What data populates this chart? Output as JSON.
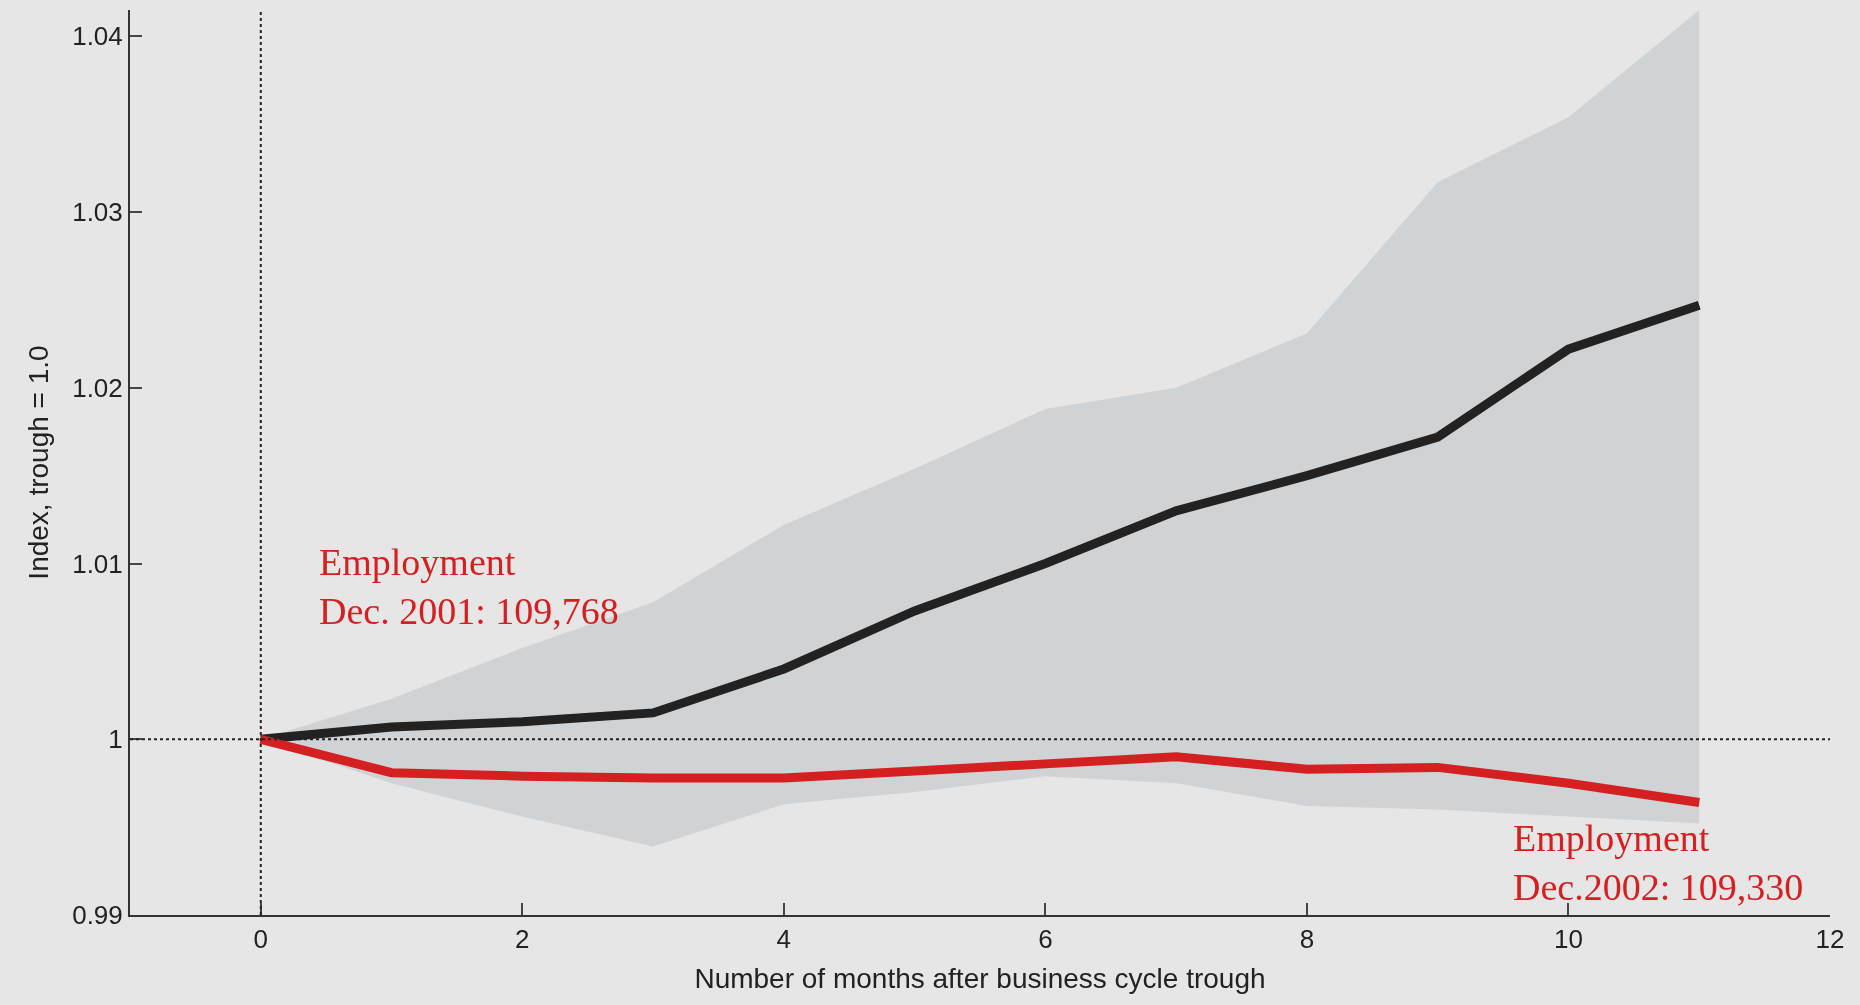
{
  "chart_data": {
    "type": "line",
    "xlabel": "Number of months after business cycle trough",
    "ylabel": "Index, trough = 1.0",
    "x": [
      0,
      1,
      2,
      3,
      4,
      5,
      6,
      7,
      8,
      9,
      10,
      11
    ],
    "series": [
      {
        "color": "#222222",
        "values": [
          1.0,
          1.0007,
          1.001,
          1.0015,
          1.004,
          1.0073,
          1.01,
          1.013,
          1.015,
          1.0172,
          1.0222,
          1.0247
        ],
        "lower": [
          1.0,
          0.9975,
          0.9956,
          0.9939,
          0.9963,
          0.997,
          0.9979,
          0.9975,
          0.9962,
          0.996,
          0.9956,
          0.9952
        ],
        "upper": [
          1.0,
          1.0023,
          1.0052,
          1.0078,
          1.0122,
          1.0154,
          1.0188,
          1.02,
          1.0231,
          1.0317,
          1.0354,
          1.0415
        ]
      },
      {
        "color": "#d42020",
        "values": [
          1.0,
          0.9981,
          0.9979,
          0.9978,
          0.9978,
          0.9982,
          0.9986,
          0.999,
          0.9983,
          0.9984,
          0.9975,
          0.9964
        ]
      }
    ],
    "xlim": [
      -1,
      12
    ],
    "xticks": [
      0,
      2,
      4,
      6,
      8,
      10,
      12
    ],
    "ylim": [
      0.99,
      1.0415
    ],
    "yticks": [
      0.99,
      1,
      1.01,
      1.02,
      1.03,
      1.04
    ],
    "ref_lines": [
      {
        "axis": "x",
        "value": 0,
        "line_style": "dotted"
      },
      {
        "axis": "y",
        "value": 1,
        "line_style": "dotted"
      }
    ],
    "annotations": [
      "Employment\nDec. 2001: 109,768",
      "Employment\nDec.2002: 109,330"
    ],
    "grid": false,
    "marker": "none",
    "line_style": "solid"
  }
}
